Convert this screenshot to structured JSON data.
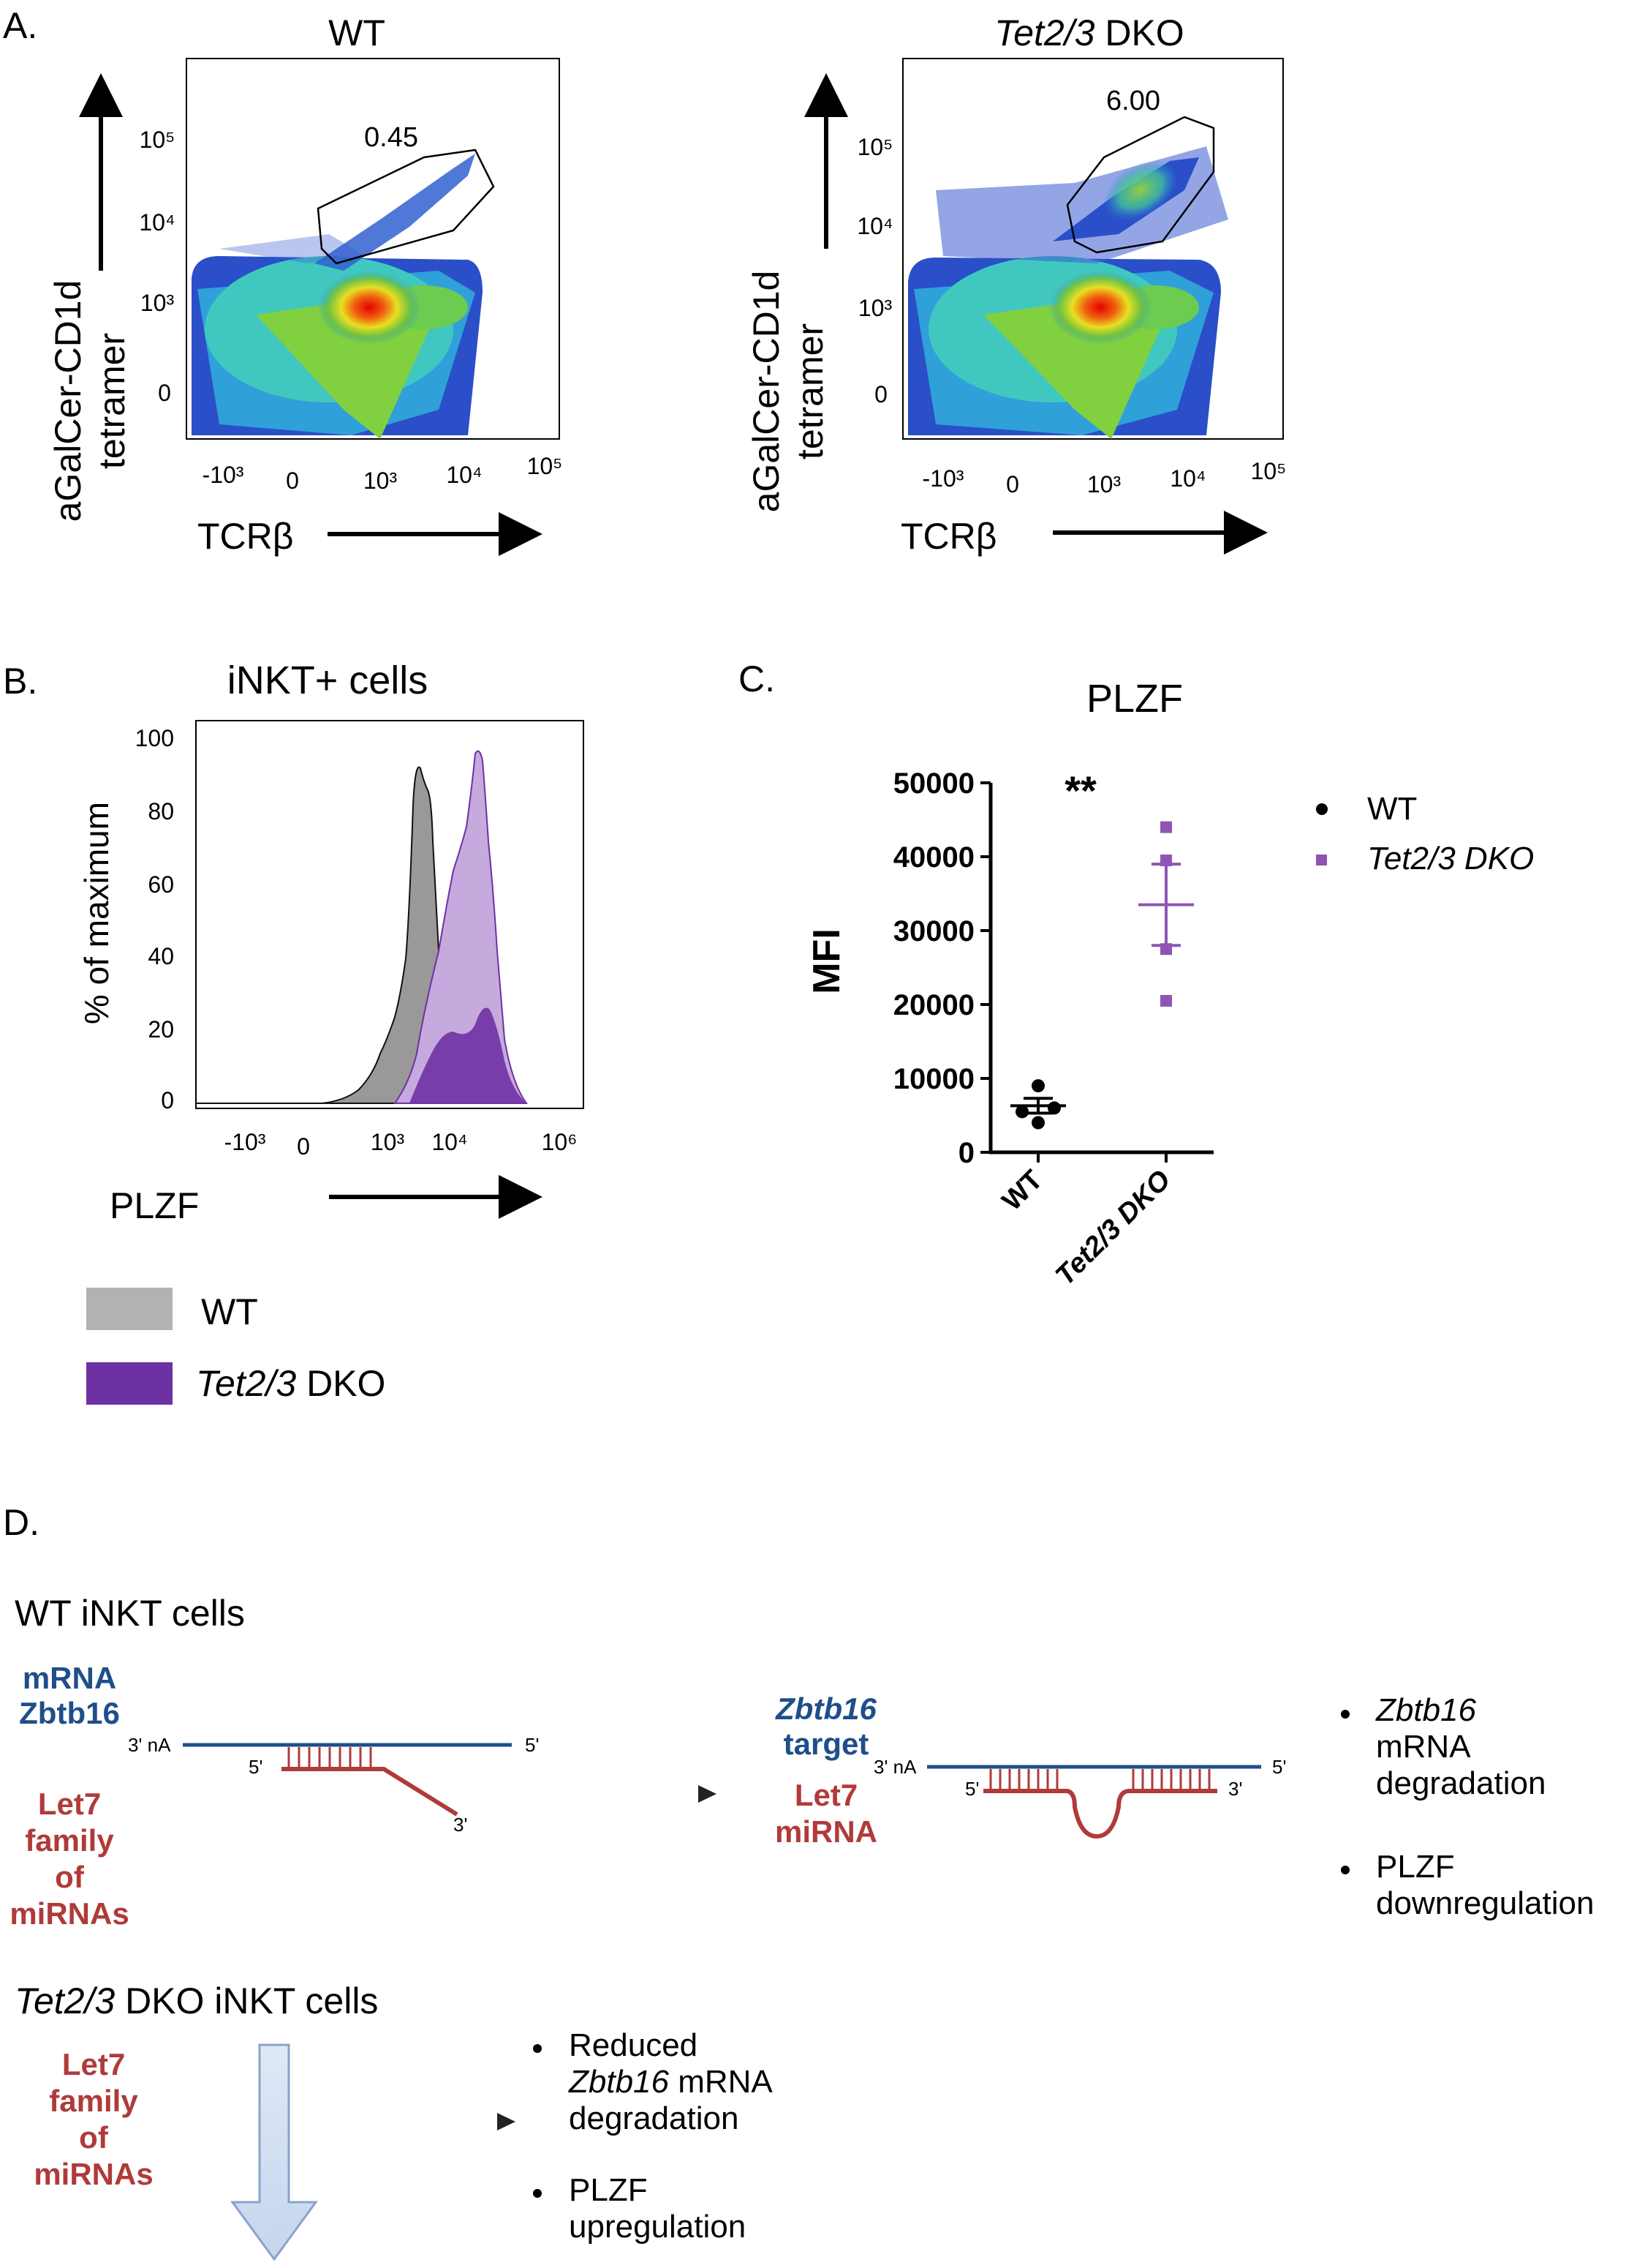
{
  "panel_a": {
    "label": "A.",
    "wt": {
      "title": "WT",
      "gate_value": "0.45",
      "y_axis_label": "aGalCer-CD1d",
      "y_axis_label2": "tetramer",
      "x_axis_label": "TCRβ",
      "x_ticks": [
        "-10³",
        "0",
        "10³",
        "10⁴",
        "10⁵"
      ],
      "y_ticks": [
        "10⁵",
        "10⁴",
        "10³",
        "0"
      ]
    },
    "dko": {
      "title_italic": "Tet2/3",
      "title_rest": " DKO",
      "gate_value": "6.00",
      "y_axis_label": "aGalCer-CD1d",
      "y_axis_label2": "tetramer",
      "x_axis_label": "TCRβ",
      "x_ticks": [
        "-10³",
        "0",
        "10³",
        "10⁴",
        "10⁵"
      ],
      "y_ticks": [
        "10⁵",
        "10⁴",
        "10³",
        "0"
      ]
    }
  },
  "panel_b": {
    "label": "B.",
    "title": "iNKT+ cells",
    "y_axis_label": "%  of maximum",
    "x_axis_label": "PLZF",
    "y_ticks": [
      "100",
      "80",
      "60",
      "40",
      "20",
      "0"
    ],
    "x_ticks": [
      "-10³",
      "0",
      "10³",
      "10⁴",
      "10⁶"
    ],
    "legend": [
      {
        "label": "WT",
        "color": "#b3b1b1"
      },
      {
        "label_italic": "Tet2/3",
        "label_rest": " DKO",
        "color": "#6e31a3"
      }
    ]
  },
  "panel_c": {
    "label": "C.",
    "significance": "**",
    "legend": [
      {
        "label": "WT",
        "color": "#000000"
      },
      {
        "label": "Tet2/3 DKO",
        "color": "#8e55b4"
      }
    ],
    "chart_data": {
      "type": "scatter",
      "title": "PLZF",
      "ylabel": "MFI",
      "xlabel": "",
      "categories": [
        "WT",
        "Tet2/3 DKO"
      ],
      "y_ticks": [
        "0",
        "10000",
        "20000",
        "30000",
        "40000",
        "50000"
      ],
      "ylim": [
        0,
        50000
      ],
      "series": [
        {
          "name": "WT",
          "color": "#000000",
          "marker": "circle",
          "values": [
            9000,
            6000,
            5500,
            5000
          ],
          "mean": 6300,
          "sem_low": 5300,
          "sem_high": 7300
        },
        {
          "name": "Tet2/3 DKO",
          "color": "#8e55b4",
          "marker": "square",
          "values": [
            44000,
            39500,
            27500,
            20500
          ],
          "mean": 33500,
          "sem_low": 28000,
          "sem_high": 39000
        }
      ]
    }
  },
  "panel_d": {
    "label": "D.",
    "wt_header": "WT iNKT cells",
    "mrna_label1": "mRNA",
    "mrna_label2": "Zbtb16",
    "let7_family_lines": [
      "Let7",
      "family",
      "of",
      "miRNAs"
    ],
    "end_3nA": "3' nA",
    "end_5": "5'",
    "end_3": "3'",
    "target_label_italic": "Zbtb16",
    "target_label2": "target",
    "let7_mirna1": "Let7",
    "let7_mirna2": "miRNA",
    "wt_bullets": [
      {
        "italic": "Zbtb16",
        "rest_lines": [
          "mRNA",
          "degradation"
        ]
      },
      {
        "lines": [
          "PLZF",
          "downregulation"
        ]
      }
    ],
    "dko_header_italic": "Tet2/3",
    "dko_header_rest": " DKO  iNKT cells",
    "dko_let7_lines": [
      "Let7",
      "family",
      "of",
      "miRNAs"
    ],
    "dko_bullets": [
      {
        "line1": "Reduced",
        "italic": "Zbtb16",
        "after_italic": " mRNA",
        "line3": "degradation"
      },
      {
        "lines": [
          "PLZF",
          "upregulation"
        ]
      }
    ],
    "colors": {
      "blue": "#1f4e8a",
      "red": "#b03a3a"
    }
  }
}
